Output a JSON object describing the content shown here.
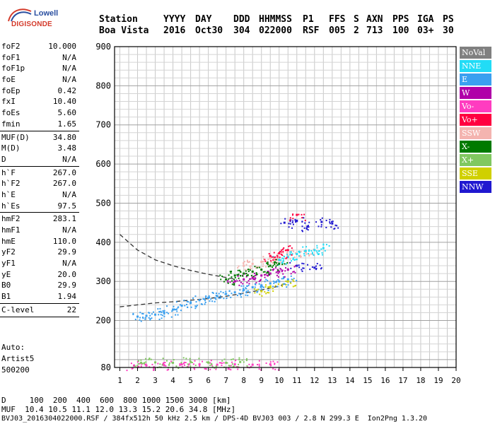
{
  "logo": {
    "line1": "Lowell",
    "line2": "DIGISONDE"
  },
  "header": {
    "row1": [
      "Station",
      "YYYY",
      "DAY",
      "DDD",
      "HHMMSS",
      "P1",
      "FFS",
      "S",
      "AXN",
      "PPS",
      "IGA",
      "PS"
    ],
    "row2": [
      "Boa Vista",
      "2016",
      "Oct30",
      "304",
      "022000",
      "RSF",
      "005",
      "2",
      "713",
      "100",
      "03+",
      "30"
    ]
  },
  "params": {
    "g1": [
      {
        "k": "foF2",
        "v": "10.000"
      },
      {
        "k": "foF1",
        "v": "N/A"
      },
      {
        "k": "foF1p",
        "v": "N/A"
      },
      {
        "k": "foE",
        "v": "N/A"
      },
      {
        "k": "foEp",
        "v": "0.42"
      },
      {
        "k": "fxI",
        "v": "10.40"
      },
      {
        "k": "foEs",
        "v": "5.60"
      },
      {
        "k": "fmin",
        "v": "1.65"
      }
    ],
    "g2": [
      {
        "k": "MUF(D)",
        "v": "34.80"
      },
      {
        "k": "M(D)",
        "v": "3.48"
      },
      {
        "k": "D",
        "v": "N/A"
      }
    ],
    "g3": [
      {
        "k": "h`F",
        "v": "267.0"
      },
      {
        "k": "h`F2",
        "v": "267.0"
      },
      {
        "k": "h`E",
        "v": "N/A"
      },
      {
        "k": "h`Es",
        "v": "97.5"
      }
    ],
    "g4": [
      {
        "k": "hmF2",
        "v": "283.1"
      },
      {
        "k": "hmF1",
        "v": "N/A"
      },
      {
        "k": "hmE",
        "v": "110.0"
      },
      {
        "k": "yF2",
        "v": "29.9"
      },
      {
        "k": "yF1",
        "v": "N/A"
      },
      {
        "k": "yE",
        "v": "20.0"
      },
      {
        "k": "B0",
        "v": "29.9"
      },
      {
        "k": "B1",
        "v": "1.94"
      }
    ],
    "g5": [
      {
        "k": "C-level",
        "v": "22"
      }
    ]
  },
  "auto": {
    "l1": "Auto:",
    "l2": "Artist5",
    "l3": "500200"
  },
  "legend": [
    {
      "label": "NoVal",
      "color": "#808080"
    },
    {
      "label": "NNE",
      "color": "#22dcf6"
    },
    {
      "label": "E",
      "color": "#3aa0f0"
    },
    {
      "label": "W",
      "color": "#b000a8"
    },
    {
      "label": "Vo-",
      "color": "#ff3cc0"
    },
    {
      "label": "Vo+",
      "color": "#ff0040"
    },
    {
      "label": "SSW",
      "color": "#f4b4b0"
    },
    {
      "label": "X-",
      "color": "#007a00"
    },
    {
      "label": "X+",
      "color": "#80c860"
    },
    {
      "label": "SSE",
      "color": "#d0d000"
    },
    {
      "label": "NNW",
      "color": "#2018d0"
    }
  ],
  "footer": {
    "dist": "D     100  200  400  600  800 1000 1500 3000 [km]",
    "muf": "MUF  10.4 10.5 11.1 12.0 13.3 15.2 20.6 34.8 [MHz]",
    "file": "BVJ03_2016304022000.RSF / 384fx512h 50 kHz 2.5 km / DPS-4D BVJ03 003 / 2.8 N 299.3 E  Ion2Png 1.3.20"
  },
  "chart_data": {
    "type": "scatter",
    "title": "",
    "xlabel": "",
    "ylabel": "",
    "xlim": [
      1,
      20
    ],
    "ylim": [
      80,
      900
    ],
    "x_ticks": [
      1,
      2,
      3,
      4,
      5,
      6,
      7,
      8,
      9,
      10,
      11,
      12,
      13,
      14,
      15,
      16,
      17,
      18,
      19,
      20
    ],
    "y_ticks": [
      80,
      200,
      300,
      400,
      500,
      600,
      700,
      800,
      900
    ],
    "grid": true,
    "legend_position": "right",
    "series": [
      {
        "name": "Vo-",
        "color": "#ff3cc0",
        "x": [
          1.8,
          2.5,
          3.5,
          4.5,
          5.5,
          6.5,
          7.5,
          8.5,
          9.5
        ],
        "y": [
          85,
          85,
          86,
          88,
          88,
          87,
          88,
          87,
          88
        ]
      },
      {
        "name": "X+",
        "color": "#80c860",
        "x": [
          2.2,
          3.0,
          4.0,
          5.0,
          6.0,
          7.0,
          7.8
        ],
        "y": [
          92,
          93,
          92,
          94,
          93,
          92,
          94
        ]
      },
      {
        "name": "E",
        "color": "#3aa0f0",
        "x": [
          2.0,
          2.5,
          3.0,
          3.5,
          4.0,
          4.5,
          5.0,
          5.5,
          6.0,
          6.5,
          7.0,
          7.5,
          8.0,
          8.5,
          9.0,
          9.5,
          10.0,
          10.5
        ],
        "y": [
          210,
          212,
          215,
          220,
          228,
          238,
          245,
          252,
          258,
          262,
          268,
          272,
          278,
          285,
          290,
          295,
          300,
          305
        ]
      },
      {
        "name": "SSW",
        "color": "#f4b4b0",
        "x": [
          8.0,
          8.5,
          9.0,
          9.5,
          10.0,
          10.5,
          11.0,
          11.5
        ],
        "y": [
          340,
          345,
          350,
          360,
          355,
          365,
          370,
          375
        ]
      },
      {
        "name": "W",
        "color": "#b000a8",
        "x": [
          7.5,
          8.0,
          8.5,
          9.0,
          9.5,
          10.0,
          10.5
        ],
        "y": [
          300,
          305,
          310,
          315,
          320,
          325,
          330
        ]
      },
      {
        "name": "NNE",
        "color": "#22dcf6",
        "x": [
          10.0,
          10.5,
          11.0,
          11.5,
          12.0,
          12.5
        ],
        "y": [
          355,
          362,
          370,
          378,
          380,
          385
        ]
      },
      {
        "name": "NNW",
        "color": "#2018d0",
        "x": [
          10.3,
          11.0,
          11.6,
          12.4,
          13.0,
          11.0,
          12.0
        ],
        "y": [
          450,
          455,
          440,
          452,
          448,
          340,
          335
        ]
      },
      {
        "name": "Vo+",
        "color": "#ff0040",
        "x": [
          9.5,
          10.0,
          10.5,
          11.0
        ],
        "y": [
          365,
          372,
          380,
          470
        ]
      },
      {
        "name": "SSE",
        "color": "#d0d000",
        "x": [
          9.0,
          9.5,
          10.5
        ],
        "y": [
          275,
          285,
          300
        ]
      },
      {
        "name": "X-",
        "color": "#007a00",
        "x": [
          7.0,
          7.5,
          8.0,
          8.5,
          9.0,
          9.5,
          10.0
        ],
        "y": [
          305,
          315,
          320,
          325,
          330,
          340,
          345
        ]
      }
    ],
    "dashed_profiles": [
      {
        "x": [
          1.0,
          2.0,
          3.0,
          4.0,
          5.0,
          6.0,
          7.0,
          7.6
        ],
        "y": [
          420,
          380,
          355,
          340,
          328,
          318,
          310,
          305
        ]
      },
      {
        "x": [
          1.0,
          2.0,
          3.0,
          4.0,
          5.0,
          6.0,
          7.0,
          8.0,
          9.0,
          10.0,
          10.4
        ],
        "y": [
          235,
          240,
          245,
          248,
          252,
          256,
          262,
          270,
          278,
          288,
          295
        ]
      }
    ]
  }
}
